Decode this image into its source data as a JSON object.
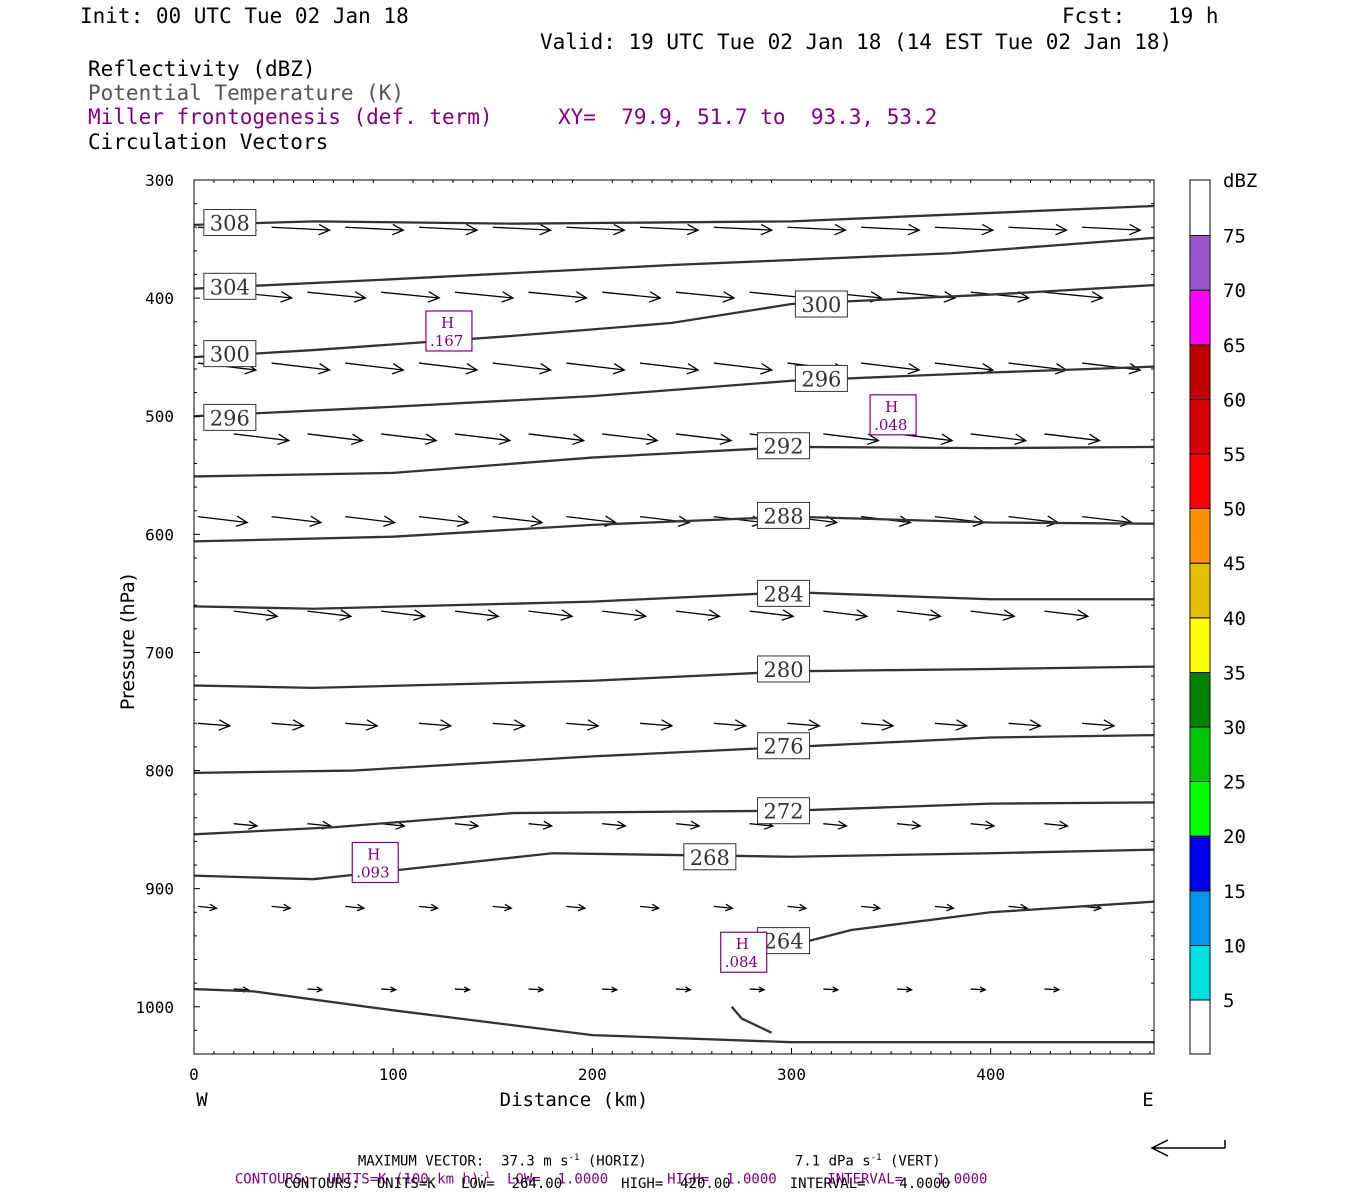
{
  "header": {
    "init": "Init: 00 UTC Tue 02 Jan 18",
    "fcst_label": "Fcst:",
    "fcst_value": "19 h",
    "valid": "Valid: 19 UTC Tue 02 Jan 18 (14 EST Tue 02 Jan 18)"
  },
  "fields": {
    "reflectivity": "Reflectivity (dBZ)",
    "theta": "Potential Temperature (K)",
    "miller": "Miller frontogenesis (def. term)",
    "xy": "XY=  79.9, 51.7 to  93.3, 53.2",
    "circulation": "Circulation Vectors"
  },
  "colorbar": {
    "unit": "dBZ",
    "levels": [
      {
        "label": "5",
        "color": "#00e0e0"
      },
      {
        "label": "10",
        "color": "#0096f0"
      },
      {
        "label": "15",
        "color": "#0000f0"
      },
      {
        "label": "20",
        "color": "#00ff00"
      },
      {
        "label": "25",
        "color": "#00c800"
      },
      {
        "label": "30",
        "color": "#008000"
      },
      {
        "label": "35",
        "color": "#ffff00"
      },
      {
        "label": "40",
        "color": "#e6be00"
      },
      {
        "label": "45",
        "color": "#ff9000"
      },
      {
        "label": "50",
        "color": "#ff0000"
      },
      {
        "label": "55",
        "color": "#d70000"
      },
      {
        "label": "60",
        "color": "#c00000"
      },
      {
        "label": "65",
        "color": "#ff00ff"
      },
      {
        "label": "70",
        "color": "#9955c9"
      },
      {
        "label": "75",
        "color": "#ffffff"
      }
    ]
  },
  "chart_data": {
    "type": "cross-section",
    "xlabel": "Distance (km)",
    "ylabel": "Pressure (hPa)",
    "xlim": [
      0,
      482
    ],
    "ylim": [
      1040,
      300
    ],
    "x_ticks": [
      "0",
      "100",
      "200",
      "300",
      "400"
    ],
    "y_ticks": [
      "300",
      "400",
      "500",
      "600",
      "700",
      "800",
      "900",
      "1000"
    ],
    "left_end": "W",
    "right_end": "E",
    "theta_contours": [
      {
        "label": "308",
        "points": [
          [
            0,
            338
          ],
          [
            60,
            335
          ],
          [
            160,
            337
          ],
          [
            300,
            335
          ],
          [
            482,
            322
          ]
        ],
        "labels_at": [
          [
            18,
            336
          ]
        ]
      },
      {
        "label": "304",
        "points": [
          [
            0,
            392
          ],
          [
            100,
            384
          ],
          [
            240,
            372
          ],
          [
            380,
            362
          ],
          [
            482,
            349
          ]
        ],
        "labels_at": [
          [
            18,
            390
          ]
        ]
      },
      {
        "label": "300",
        "points": [
          [
            0,
            450
          ],
          [
            60,
            444
          ],
          [
            160,
            432
          ],
          [
            240,
            421
          ],
          [
            300,
            405
          ],
          [
            400,
            397
          ],
          [
            482,
            389
          ]
        ],
        "labels_at": [
          [
            18,
            447
          ],
          [
            315,
            405
          ]
        ]
      },
      {
        "label": "296",
        "points": [
          [
            0,
            500
          ],
          [
            100,
            492
          ],
          [
            200,
            483
          ],
          [
            300,
            470
          ],
          [
            400,
            463
          ],
          [
            482,
            458
          ]
        ],
        "labels_at": [
          [
            18,
            501
          ],
          [
            315,
            468
          ]
        ]
      },
      {
        "label": "292",
        "points": [
          [
            0,
            551
          ],
          [
            100,
            548
          ],
          [
            200,
            535
          ],
          [
            300,
            526
          ],
          [
            400,
            527
          ],
          [
            482,
            526
          ]
        ],
        "labels_at": [
          [
            296,
            525
          ]
        ]
      },
      {
        "label": "288",
        "points": [
          [
            0,
            606
          ],
          [
            100,
            602
          ],
          [
            200,
            592
          ],
          [
            300,
            585
          ],
          [
            400,
            590
          ],
          [
            482,
            591
          ]
        ],
        "labels_at": [
          [
            296,
            584
          ]
        ]
      },
      {
        "label": "284",
        "points": [
          [
            0,
            661
          ],
          [
            60,
            663
          ],
          [
            200,
            657
          ],
          [
            300,
            649
          ],
          [
            400,
            655
          ],
          [
            482,
            655
          ]
        ],
        "labels_at": [
          [
            296,
            650
          ]
        ]
      },
      {
        "label": "280",
        "points": [
          [
            0,
            728
          ],
          [
            60,
            730
          ],
          [
            200,
            724
          ],
          [
            300,
            716
          ],
          [
            400,
            714
          ],
          [
            482,
            712
          ]
        ],
        "labels_at": [
          [
            296,
            714
          ]
        ]
      },
      {
        "label": "276",
        "points": [
          [
            0,
            802
          ],
          [
            80,
            800
          ],
          [
            200,
            788
          ],
          [
            300,
            780
          ],
          [
            400,
            772
          ],
          [
            482,
            770
          ]
        ],
        "labels_at": [
          [
            296,
            779
          ]
        ]
      },
      {
        "label": "272",
        "points": [
          [
            0,
            854
          ],
          [
            70,
            848
          ],
          [
            160,
            836
          ],
          [
            300,
            834
          ],
          [
            400,
            828
          ],
          [
            482,
            827
          ]
        ],
        "labels_at": [
          [
            296,
            834
          ]
        ]
      },
      {
        "label": "268",
        "points": [
          [
            0,
            889
          ],
          [
            60,
            892
          ],
          [
            180,
            870
          ],
          [
            300,
            873
          ],
          [
            400,
            870
          ],
          [
            482,
            867
          ]
        ],
        "labels_at": [
          [
            259,
            873
          ]
        ]
      },
      {
        "label": "264",
        "points": [
          [
            270,
            1000
          ],
          [
            275,
            1010
          ],
          [
            290,
            1022
          ]
        ],
        "labels_at": [
          [
            296,
            944
          ]
        ]
      },
      {
        "label": "264",
        "points": [
          [
            300,
            948
          ],
          [
            330,
            935
          ],
          [
            400,
            920
          ],
          [
            482,
            911
          ]
        ],
        "labels_at": []
      },
      {
        "label": "",
        "points": [
          [
            0,
            985
          ],
          [
            30,
            987
          ],
          [
            100,
            1003
          ],
          [
            200,
            1024
          ],
          [
            300,
            1030
          ],
          [
            400,
            1030
          ],
          [
            482,
            1030
          ]
        ],
        "labels_at": []
      }
    ],
    "frontogenesis_maxima": [
      {
        "label": "H",
        "value": ".167",
        "x": 128,
        "p": 427
      },
      {
        "label": "H",
        "value": ".048",
        "x": 351,
        "p": 498
      },
      {
        "label": "H",
        "value": ".093",
        "x": 91,
        "p": 877
      },
      {
        "label": "H",
        "value": ".084",
        "x": 276,
        "p": 953
      }
    ],
    "vector_rows": [
      {
        "p": 340,
        "u": 1.0,
        "w": 0.05
      },
      {
        "p": 395,
        "u": 1.0,
        "w": 0.1
      },
      {
        "p": 455,
        "u": 1.0,
        "w": 0.12
      },
      {
        "p": 515,
        "u": 0.95,
        "w": 0.12
      },
      {
        "p": 585,
        "u": 0.85,
        "w": 0.12
      },
      {
        "p": 665,
        "u": 0.75,
        "w": 0.12
      },
      {
        "p": 760,
        "u": 0.55,
        "w": 0.08
      },
      {
        "p": 845,
        "u": 0.4,
        "w": 0.1
      },
      {
        "p": 915,
        "u": 0.32,
        "w": 0.1
      },
      {
        "p": 985,
        "u": 0.25,
        "w": 0.05
      }
    ]
  },
  "footer": {
    "max_vector": "MAXIMUM VECTOR:  37.3 m s",
    "max_vector_exp": "-1",
    "max_vector_horiz": " (HORIZ)",
    "vert_val": "7.1 dPa s",
    "vert_exp": "-1",
    "vert_label": " (VERT)",
    "contours1_a": "CONTOURS:  UNITS=K (100 km h)",
    "contours1_exp": "-1",
    "contours1_b": "  LOW=  1.0000       HIGH=  1.0000      INTERVAL=    1.0000",
    "contours2": "CONTOURS:  UNITS=K   LOW=  264.00       HIGH=  420.00       INTERVAL=    4.0000"
  },
  "colors": {
    "theta": "#333333",
    "miller": "#800080",
    "frame": "#000000"
  }
}
